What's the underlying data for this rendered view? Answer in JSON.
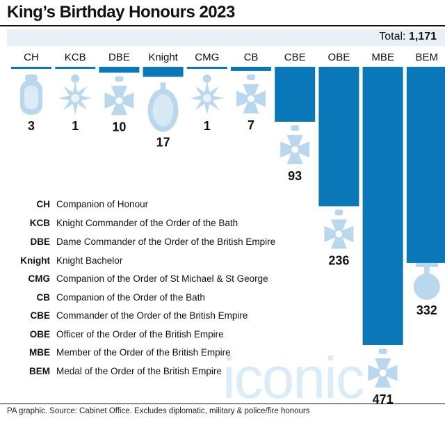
{
  "title": "King’s Birthday Honours 2023",
  "total_label": "Total:",
  "total_value": "1,171",
  "colors": {
    "bar": "#0a78b8",
    "medal": "#b9d8ee",
    "band": "#e8f1f8"
  },
  "chart_data": {
    "type": "bar",
    "orientation": "vertical-downward",
    "categories": [
      "CH",
      "KCB",
      "DBE",
      "Knight",
      "CMG",
      "CB",
      "CBE",
      "OBE",
      "MBE",
      "BEM"
    ],
    "values": [
      3,
      1,
      10,
      17,
      1,
      7,
      93,
      236,
      471,
      332
    ],
    "value_labels": [
      "3",
      "1",
      "10",
      "17",
      "1",
      "7",
      "93",
      "236",
      "471",
      "332"
    ],
    "icons": [
      "ch-medal-icon",
      "star-cross-icon",
      "maltese-cross-icon",
      "knight-badge-icon",
      "star-cross-icon",
      "maltese-cross-icon",
      "maltese-cross-icon",
      "maltese-cross-icon",
      "maltese-cross-icon",
      "round-medal-icon"
    ],
    "ylim": [
      0,
      471
    ]
  },
  "legend": [
    {
      "abbr": "CH",
      "desc": "Companion of Honour"
    },
    {
      "abbr": "KCB",
      "desc": "Knight Commander of the Order of the Bath"
    },
    {
      "abbr": "DBE",
      "desc": "Dame Commander of the Order of the British Empire"
    },
    {
      "abbr": "Knight",
      "desc": "Knight Bachelor"
    },
    {
      "abbr": "CMG",
      "desc": "Companion of the Order of St Michael & St George"
    },
    {
      "abbr": "CB",
      "desc": "Companion of the Order of the Bath"
    },
    {
      "abbr": "CBE",
      "desc": "Commander of the Order of the British Empire"
    },
    {
      "abbr": "OBE",
      "desc": "Officer of the Order of the British Empire"
    },
    {
      "abbr": "MBE",
      "desc": "Member of the Order of the British Empire"
    },
    {
      "abbr": "BEM",
      "desc": "Medal of the Order of the British Empire"
    }
  ],
  "footer": "PA graphic. Source: Cabinet Office. Excludes diplomatic, military & police/fire honours",
  "watermark": "iconic"
}
